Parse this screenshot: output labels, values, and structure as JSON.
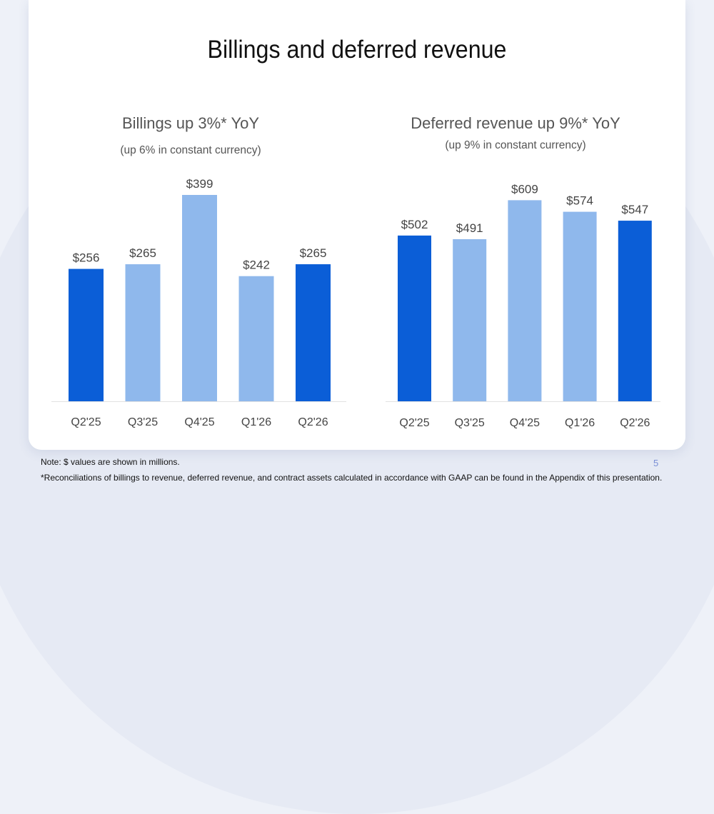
{
  "slide": {
    "title": "Billings and deferred revenue",
    "page_number": "5",
    "note": "Note: $ values are shown in millions.",
    "footnote": "*Reconciliations of billings to revenue, deferred revenue, and contract assets calculated in accordance with GAAP can be found in the Appendix of this presentation."
  },
  "colors": {
    "highlight": "#0b5ed7",
    "regular": "#8fb8ec",
    "baseline": "#e2e2e2",
    "label": "#444444"
  },
  "chart_data": [
    {
      "type": "bar",
      "title": "Billings up 3%* YoY",
      "subtitle": "(up 6% in constant currency)",
      "categories": [
        "Q2'25",
        "Q3'25",
        "Q4'25",
        "Q1'26",
        "Q2'26"
      ],
      "values": [
        256,
        265,
        399,
        242,
        265
      ],
      "data_labels": [
        "$256",
        "$265",
        "$399",
        "$242",
        "$265"
      ],
      "highlighted": [
        true,
        false,
        false,
        false,
        true
      ],
      "units": "$ millions",
      "ylim": [
        0,
        450
      ],
      "grid": false
    },
    {
      "type": "bar",
      "title": "Deferred revenue up 9%* YoY",
      "subtitle": "(up 9% in constant currency)",
      "categories": [
        "Q2'25",
        "Q3'25",
        "Q4'25",
        "Q1'26",
        "Q2'26"
      ],
      "values": [
        502,
        491,
        609,
        574,
        547
      ],
      "data_labels": [
        "$502",
        "$491",
        "$609",
        "$574",
        "$547"
      ],
      "highlighted": [
        true,
        false,
        false,
        false,
        true
      ],
      "units": "$ millions",
      "ylim": [
        0,
        700
      ],
      "grid": false
    }
  ]
}
